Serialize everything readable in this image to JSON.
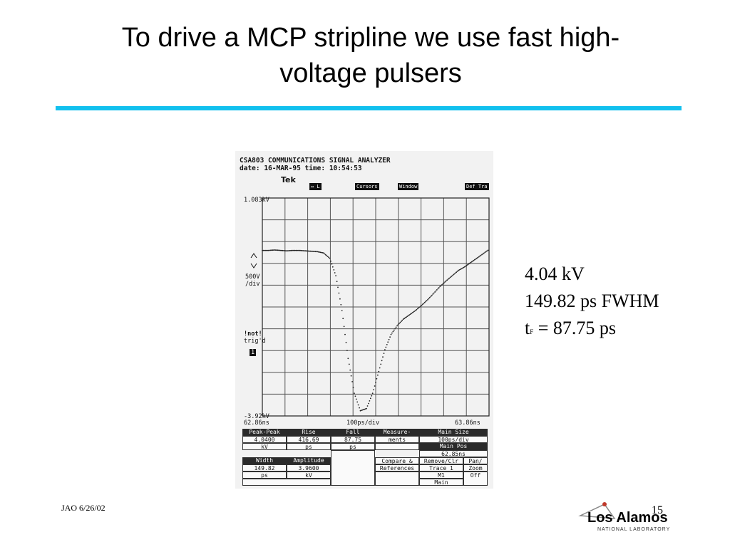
{
  "slide": {
    "title_line1": "To drive a MCP stripline we use fast high-",
    "title_line2": "voltage pulsers",
    "footer_left": "JAO 6/26/02",
    "page_number": "15",
    "accent_color": "#12c0ee"
  },
  "specs": {
    "voltage": "4.04 kV",
    "fwhm": "149.82 ps FWHM",
    "fall_prefix": "t",
    "fall_sub": "F",
    "fall_value": " = 87.75 ps"
  },
  "scope": {
    "header1": "CSA803 COMMUNICATIONS SIGNAL ANALYZER",
    "header2": "date: 16-MAR-95 time: 10:54:53",
    "brand": "Tek",
    "tabs": [
      "↔ L",
      "Cursors",
      "Window",
      "Def Tra"
    ],
    "y_top": "1.083kV",
    "y_bottom": "-3.92kV",
    "vdiv": "500V\n/div",
    "vdiv_line1": "500V",
    "vdiv_line2": "/div",
    "trig1": "!not!",
    "trig2": "trig'd",
    "trig3": "1",
    "x_left": "62.86ns",
    "x_mid": "100ps/div",
    "x_right": "63.86ns",
    "measurements": {
      "headers": [
        "Peak-Peak",
        "Rise",
        "Fall",
        "Measure-",
        "Main Size"
      ],
      "row1_values": [
        "4.0400",
        "416.69",
        "87.75",
        "ments",
        "100ps/div"
      ],
      "row1_units": [
        "kV",
        "ps",
        "ps",
        "",
        ""
      ],
      "main_pos_label": "Main Pos",
      "main_pos_value": "62.85ns",
      "row2_headers": [
        "Width",
        "Amplitude",
        "",
        "Compare &",
        "Remove/Clr",
        "Pan/"
      ],
      "row2_headers_b": [
        "",
        "",
        "",
        "References",
        "Trace 1",
        "Zoom"
      ],
      "row3_values": [
        "149.82",
        "3.9600",
        "",
        "",
        "M1",
        "Off"
      ],
      "row3_units": [
        "ps",
        "kV",
        "",
        "",
        "Main",
        ""
      ]
    },
    "curve_y_values": [
      -0.12,
      -0.12,
      -0.11,
      -0.12,
      -0.13,
      -0.12,
      -0.12,
      -0.13,
      -0.14,
      -0.15,
      -0.18,
      -0.3,
      -0.7,
      -1.5,
      -2.6,
      -3.4,
      -3.8,
      -3.75,
      -3.4,
      -2.9,
      -2.4,
      -2.05,
      -1.85,
      -1.7,
      -1.6,
      -1.5,
      -1.38,
      -1.25,
      -1.1,
      -0.95,
      -0.82,
      -0.7,
      -0.58,
      -0.5,
      -0.4,
      -0.3,
      -0.2,
      -0.1
    ]
  },
  "logo": {
    "name": "Los Alamos",
    "subtitle": "NATIONAL LABORATORY"
  }
}
